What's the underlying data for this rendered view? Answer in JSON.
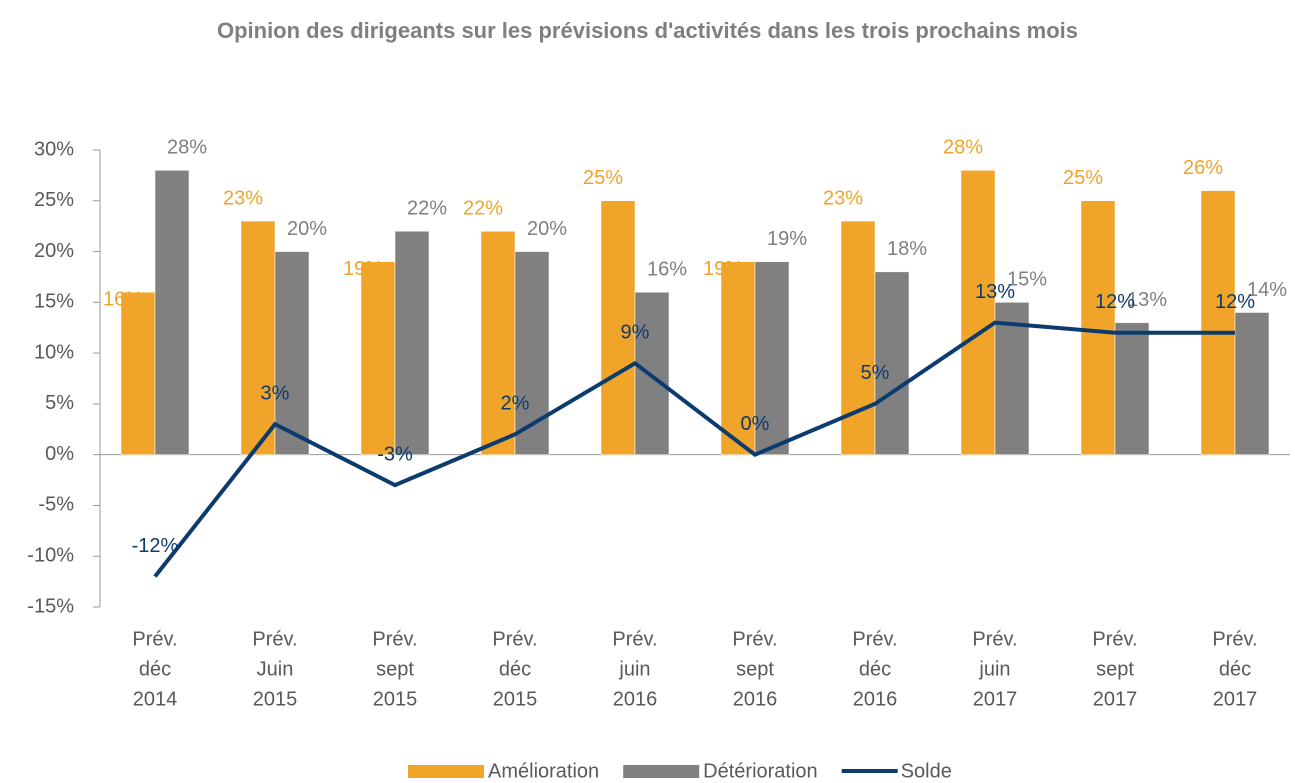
{
  "chart_data": {
    "type": "bar_line",
    "title": "Opinion des dirigeants sur les prévisions d'activités dans les trois prochains mois",
    "categories": [
      [
        "Prév.",
        "déc",
        "2014"
      ],
      [
        "Prév.",
        "Juin",
        "2015"
      ],
      [
        "Prév.",
        "sept",
        "2015"
      ],
      [
        "Prév.",
        "déc",
        "2015"
      ],
      [
        "Prév.",
        "juin",
        "2016"
      ],
      [
        "Prév.",
        "sept",
        "2016"
      ],
      [
        "Prév.",
        "déc",
        "2016"
      ],
      [
        "Prév.",
        "juin",
        "2017"
      ],
      [
        "Prév.",
        "sept",
        "2017"
      ],
      [
        "Prév.",
        "déc",
        "2017"
      ]
    ],
    "series": [
      {
        "name": "Amélioration",
        "type": "bar",
        "color": "#f0a42a",
        "values": [
          16,
          23,
          19,
          22,
          25,
          19,
          23,
          28,
          25,
          26
        ],
        "value_labels": [
          "16%",
          "23%",
          "19%",
          "22%",
          "25%",
          "19%",
          "23%",
          "28%",
          "25%",
          "26%"
        ]
      },
      {
        "name": "Détérioration",
        "type": "bar",
        "color": "#808080",
        "values": [
          28,
          20,
          22,
          20,
          16,
          19,
          18,
          15,
          13,
          14
        ],
        "value_labels": [
          "28%",
          "20%",
          "22%",
          "20%",
          "16%",
          "19%",
          "18%",
          "15%",
          "13%",
          "14%"
        ]
      },
      {
        "name": "Solde",
        "type": "line",
        "color": "#0c3c6e",
        "values": [
          -12,
          3,
          -3,
          2,
          9,
          0,
          5,
          13,
          12,
          12
        ],
        "value_labels": [
          "-12%",
          "3%",
          "-3%",
          "2%",
          "9%",
          "0%",
          "5%",
          "13%",
          "12%",
          "12%"
        ]
      }
    ],
    "ylim": [
      -15,
      30
    ],
    "yticks": [
      {
        "value": -15,
        "label": "-15%"
      },
      {
        "value": -10,
        "label": "-10%"
      },
      {
        "value": -5,
        "label": "-5%"
      },
      {
        "value": 0,
        "label": "0%"
      },
      {
        "value": 5,
        "label": "5%"
      },
      {
        "value": 10,
        "label": "10%"
      },
      {
        "value": 15,
        "label": "15%"
      },
      {
        "value": 20,
        "label": "20%"
      },
      {
        "value": 25,
        "label": "25%"
      },
      {
        "value": 30,
        "label": "30%"
      }
    ],
    "legend": "bottom"
  }
}
